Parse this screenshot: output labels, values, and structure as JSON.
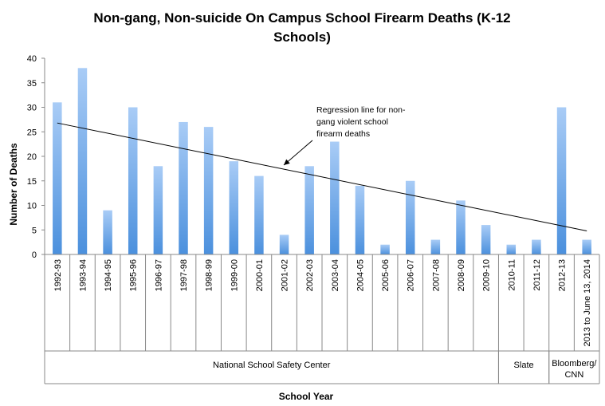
{
  "chart_data": {
    "type": "bar",
    "title_lines": [
      "Non-gang, Non-suicide On Campus School Firearm Deaths (K-12",
      "Schools)"
    ],
    "xlabel": "School Year",
    "ylabel": "Number of Deaths",
    "ylim": [
      0,
      40
    ],
    "yticks": [
      0,
      5,
      10,
      15,
      20,
      25,
      30,
      35,
      40
    ],
    "categories": [
      "1992-93",
      "1993-94",
      "1994-95",
      "1995-96",
      "1996-97",
      "1997-98",
      "1998-99",
      "1999-00",
      "2000-01",
      "2001-02",
      "2002-03",
      "2003-04",
      "2004-05",
      "2005-06",
      "2006-07",
      "2007-08",
      "2008-09",
      "2009-10",
      "2010-11",
      "2011-12",
      "2012-13",
      "2013 to June 13, 2014"
    ],
    "values": [
      31,
      38,
      9,
      30,
      18,
      27,
      26,
      19,
      16,
      4,
      18,
      23,
      14,
      2,
      15,
      3,
      11,
      6,
      2,
      3,
      30,
      3
    ],
    "source_groups": [
      {
        "label": "National School Safety Center",
        "from": 0,
        "to": 17
      },
      {
        "label": "Slate",
        "from": 18,
        "to": 19
      },
      {
        "label": "Bloomberg/ CNN",
        "from": 20,
        "to": 21
      }
    ],
    "regression": {
      "start": 26.8,
      "end": 4.8
    },
    "annotation": {
      "lines": [
        "Regression line for non-",
        "gang violent school",
        "firearm deaths"
      ]
    },
    "grid": false,
    "legend": "none",
    "colors": {
      "bar_top": "#a9ccf6",
      "bar_bottom": "#4b90dd",
      "axis": "#888888",
      "regression": "#000000"
    }
  }
}
